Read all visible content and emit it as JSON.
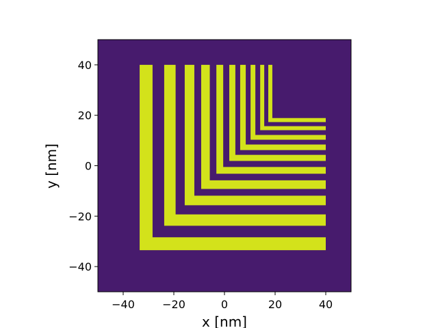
{
  "chart_data": {
    "type": "image",
    "xlabel": "x [nm]",
    "ylabel": "y [nm]",
    "xlim": [
      -50,
      50
    ],
    "ylim": [
      -50,
      50
    ],
    "xticks": [
      {
        "value": -40,
        "label": "−40"
      },
      {
        "value": -20,
        "label": "−20"
      },
      0,
      20,
      40
    ],
    "yticks": [
      {
        "value": -40,
        "label": "−40"
      },
      {
        "value": -20,
        "label": "−20"
      },
      0,
      20,
      40
    ],
    "background": "#471b6d",
    "color": "#d3e21b",
    "top": 40,
    "right": 40,
    "shapes": {
      "x": [
        -33.5,
        -23.8,
        -15.7,
        -9.2,
        -3.2,
        1.9,
        6.2,
        10.3,
        14.1,
        17.3
      ],
      "width": [
        5.1,
        4.5,
        3.8,
        3.4,
        2.7,
        2.4,
        2.2,
        1.9,
        1.6,
        1.6
      ]
    }
  }
}
